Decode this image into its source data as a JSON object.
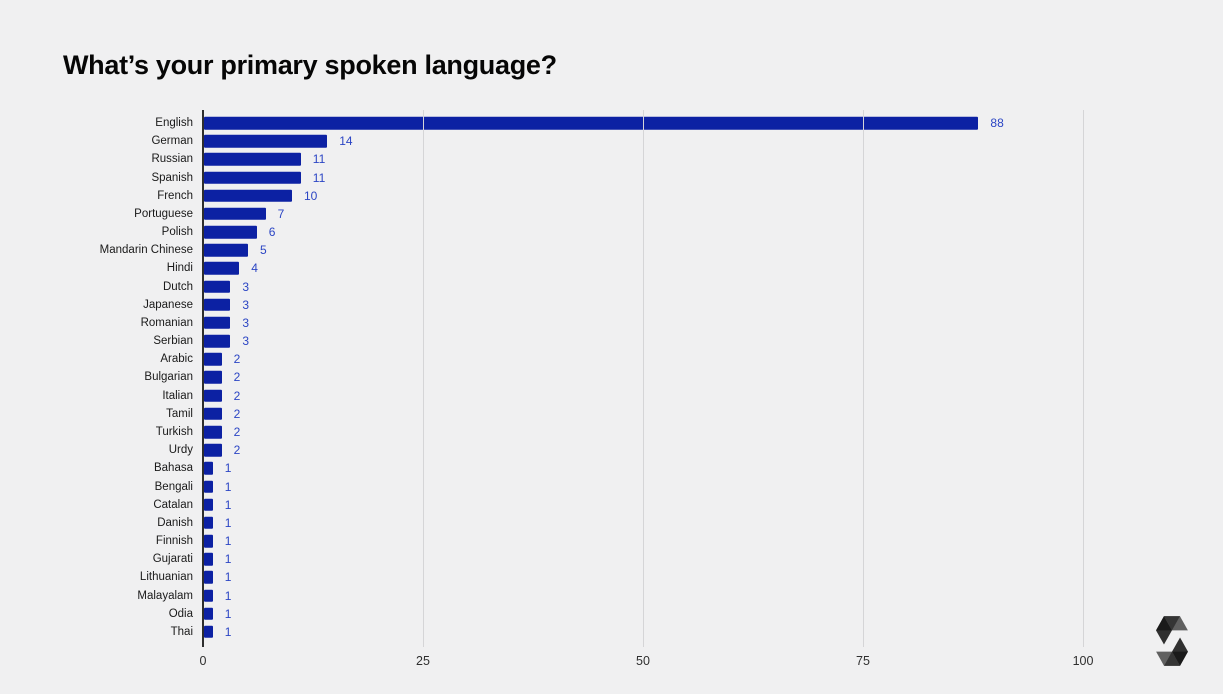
{
  "page": {
    "background_color": "#f0f0f1"
  },
  "chart_data": {
    "type": "bar",
    "orientation": "horizontal",
    "title": "What’s your primary spoken language?",
    "categories": [
      "English",
      "German",
      "Russian",
      "Spanish",
      "French",
      "Portuguese",
      "Polish",
      "Mandarin Chinese",
      "Hindi",
      "Dutch",
      "Japanese",
      "Romanian",
      "Serbian",
      "Arabic",
      "Bulgarian",
      "Italian",
      "Tamil",
      "Turkish",
      "Urdy",
      "Bahasa",
      "Bengali",
      "Catalan",
      "Danish",
      "Finnish",
      "Gujarati",
      "Lithuanian",
      "Malayalam",
      "Odia",
      "Thai"
    ],
    "values": [
      88,
      14,
      11,
      11,
      10,
      7,
      6,
      5,
      4,
      3,
      3,
      3,
      3,
      2,
      2,
      2,
      2,
      2,
      2,
      1,
      1,
      1,
      1,
      1,
      1,
      1,
      1,
      1,
      1
    ],
    "x_ticks": [
      0,
      25,
      50,
      75,
      100
    ],
    "xlim": [
      0,
      100
    ],
    "xlabel": "",
    "ylabel": "",
    "grid": "vertical-only",
    "legend": "none",
    "bar_color": "#0c21a3",
    "value_label_color": "#2b45c4",
    "axis_color": "#2e2e2e",
    "gridline_color": "#d5d5d7"
  },
  "branding": {
    "logo_name": "solidity-logo"
  }
}
